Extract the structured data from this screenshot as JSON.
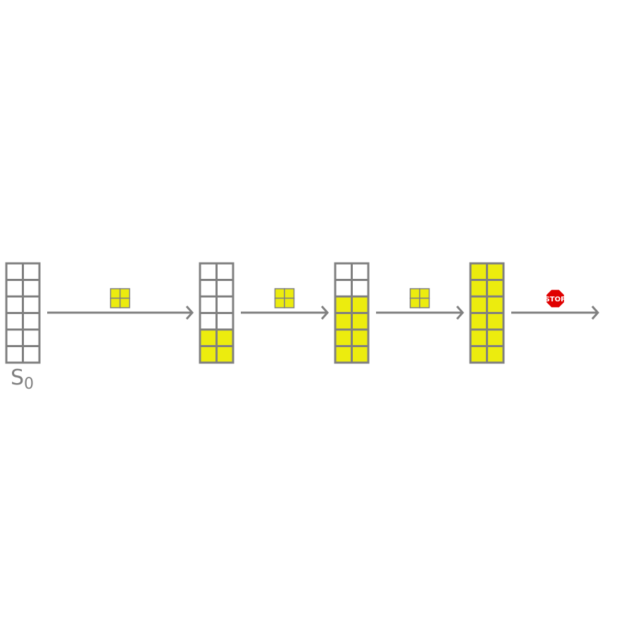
{
  "diagram": {
    "start_label": {
      "main": "S",
      "subscript": "0"
    },
    "grid": {
      "columns": 2,
      "rows": 6
    },
    "states": [
      {
        "filled_rows": 0
      },
      {
        "filled_rows": 2
      },
      {
        "filled_rows": 4
      },
      {
        "filled_rows": 6
      }
    ],
    "transitions": [
      {
        "action": "piece-2x2-icon"
      },
      {
        "action": "piece-2x2-icon"
      },
      {
        "action": "piece-2x2-icon"
      },
      {
        "action": "stop-sign-icon",
        "text": "STOP"
      }
    ],
    "colors": {
      "fill": "#ECEC0E",
      "stroke": "#808080",
      "stop": "#E00000"
    }
  }
}
